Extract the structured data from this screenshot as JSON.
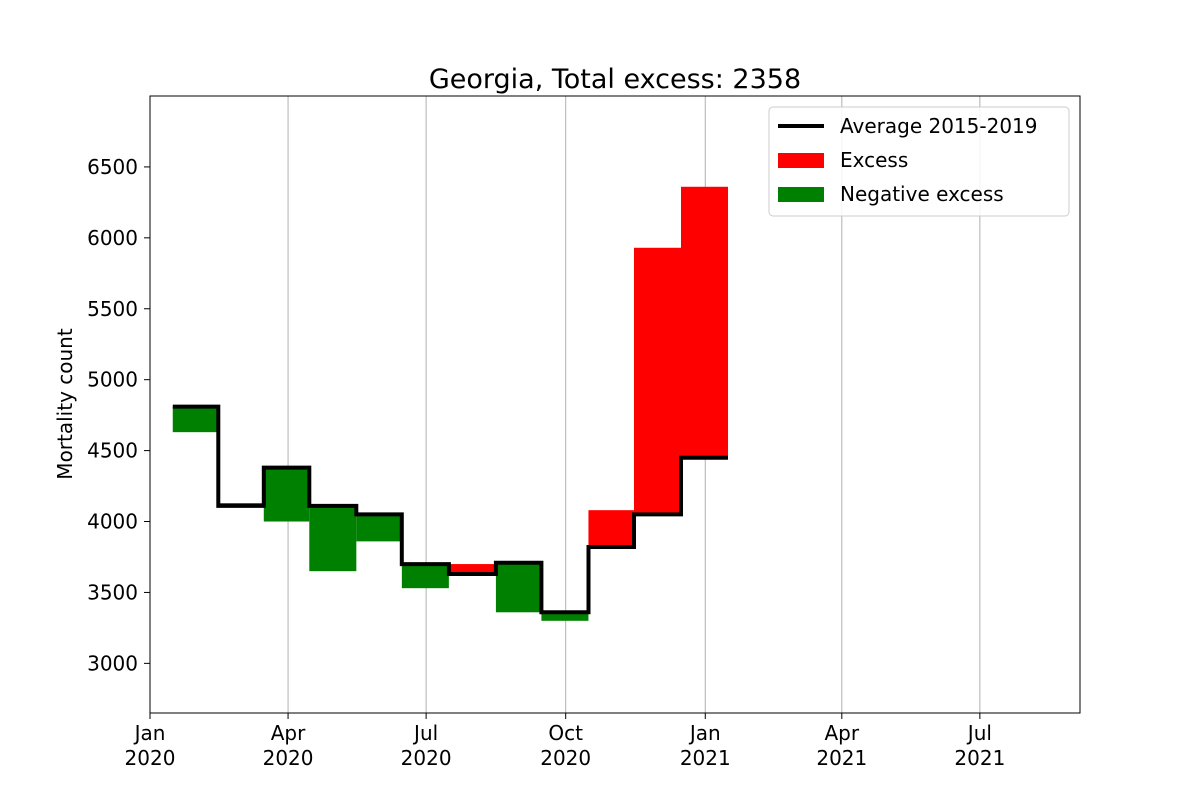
{
  "chart_data": {
    "type": "area",
    "title": "Georgia, Total excess: 2358",
    "xlabel": "",
    "ylabel": "Mortality count",
    "xlim": [
      "2020-01-01",
      "2021-09-05"
    ],
    "ylim": [
      2650,
      7000
    ],
    "grid": {
      "x": true,
      "y": false
    },
    "legend_position": "top-right",
    "y_ticks": [
      3000,
      3500,
      4000,
      4500,
      5000,
      5500,
      6000,
      6500
    ],
    "x_ticks": [
      {
        "date": "2020-01-01",
        "line1": "Jan",
        "line2": "2020"
      },
      {
        "date": "2020-04-01",
        "line1": "Apr",
        "line2": "2020"
      },
      {
        "date": "2020-07-01",
        "line1": "Jul",
        "line2": "2020"
      },
      {
        "date": "2020-10-01",
        "line1": "Oct",
        "line2": "2020"
      },
      {
        "date": "2021-01-01",
        "line1": "Jan",
        "line2": "2021"
      },
      {
        "date": "2021-04-01",
        "line1": "Apr",
        "line2": "2021"
      },
      {
        "date": "2021-07-01",
        "line1": "Jul",
        "line2": "2021"
      }
    ],
    "series": [
      {
        "name": "Average 2015-2019",
        "color": "#000000"
      },
      {
        "name": "Excess",
        "color": "#ff0000"
      },
      {
        "name": "Negative excess",
        "color": "#008000"
      }
    ],
    "periods": [
      {
        "start": "2020-01-16",
        "end": "2020-02-15",
        "average": 4810,
        "actual": 4630
      },
      {
        "start": "2020-02-15",
        "end": "2020-03-16",
        "average": 4110,
        "actual": 4130
      },
      {
        "start": "2020-03-16",
        "end": "2020-04-15",
        "average": 4380,
        "actual": 4000
      },
      {
        "start": "2020-04-15",
        "end": "2020-05-16",
        "average": 4110,
        "actual": 3650
      },
      {
        "start": "2020-05-16",
        "end": "2020-06-15",
        "average": 4050,
        "actual": 3860
      },
      {
        "start": "2020-06-15",
        "end": "2020-07-16",
        "average": 3700,
        "actual": 3530
      },
      {
        "start": "2020-07-16",
        "end": "2020-08-16",
        "average": 3630,
        "actual": 3700
      },
      {
        "start": "2020-08-16",
        "end": "2020-09-15",
        "average": 3710,
        "actual": 3360
      },
      {
        "start": "2020-09-15",
        "end": "2020-10-16",
        "average": 3360,
        "actual": 3300
      },
      {
        "start": "2020-10-16",
        "end": "2020-11-15",
        "average": 3820,
        "actual": 4080
      },
      {
        "start": "2020-11-15",
        "end": "2020-12-16",
        "average": 4050,
        "actual": 5930
      },
      {
        "start": "2020-12-16",
        "end": "2021-01-16",
        "average": 4450,
        "actual": 6360
      }
    ]
  }
}
